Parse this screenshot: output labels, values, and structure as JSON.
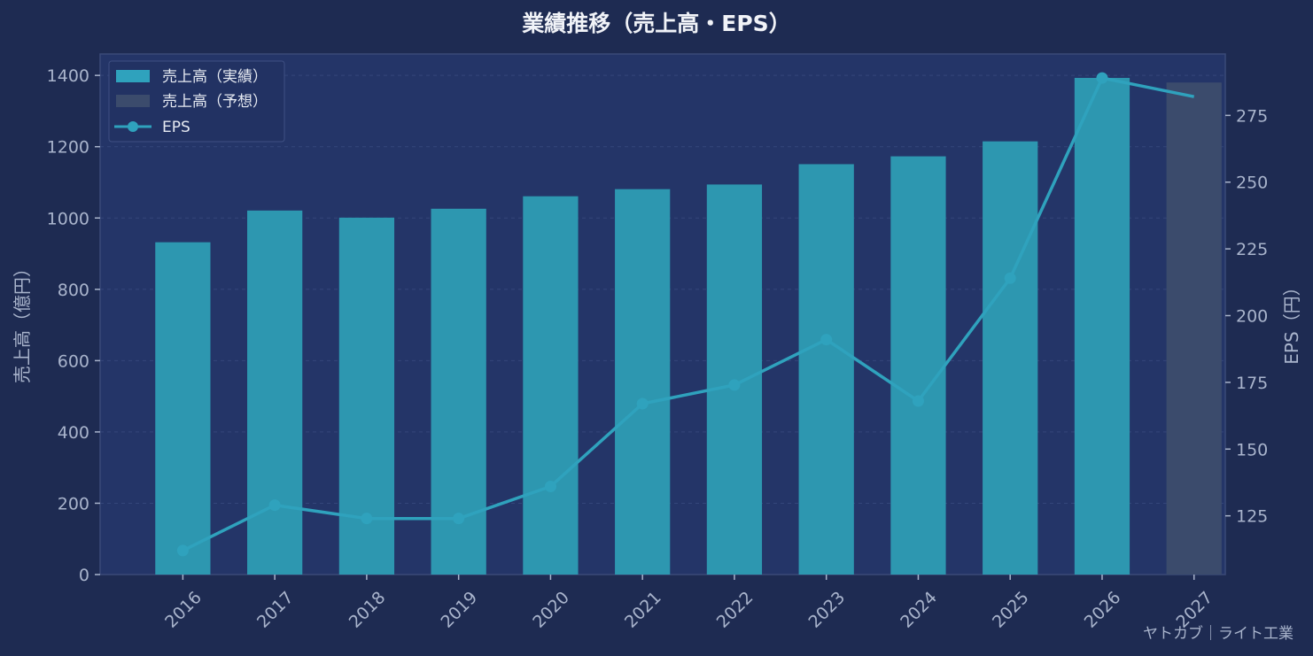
{
  "chart_data": {
    "type": "bar",
    "title": "業績推移（売上高・EPS）",
    "xlabel": "",
    "ylabel": "売上高（億円）",
    "y2label": "EPS（円）",
    "categories": [
      "2016",
      "2017",
      "2018",
      "2019",
      "2020",
      "2021",
      "2022",
      "2023",
      "2024",
      "2025",
      "2026",
      "2027"
    ],
    "ylim": [
      0,
      1460
    ],
    "y2lim": [
      103,
      298
    ],
    "yticks": [
      0,
      200,
      400,
      600,
      800,
      1000,
      1200,
      1400
    ],
    "y2ticks": [
      125,
      150,
      175,
      200,
      225,
      250,
      275
    ],
    "grid": true,
    "legend_position": "top-left",
    "series": [
      {
        "name": "売上高（実績）",
        "kind": "bar",
        "axis": "left",
        "color": "#2d97b0",
        "values": [
          932,
          1021,
          1001,
          1026,
          1061,
          1081,
          1094,
          1151,
          1173,
          1215,
          1393,
          null
        ]
      },
      {
        "name": "売上高（予想）",
        "kind": "bar",
        "axis": "left",
        "color": "#3b4b6c",
        "values": [
          null,
          null,
          null,
          null,
          null,
          null,
          null,
          null,
          null,
          null,
          null,
          1380
        ]
      },
      {
        "name": "EPS",
        "kind": "line",
        "axis": "right",
        "color": "#2fa2bd",
        "values": [
          112,
          129,
          124,
          124,
          136,
          167,
          174,
          191,
          168,
          214,
          289,
          282
        ]
      }
    ],
    "watermark": "ヤトカブ｜ライト工業"
  }
}
